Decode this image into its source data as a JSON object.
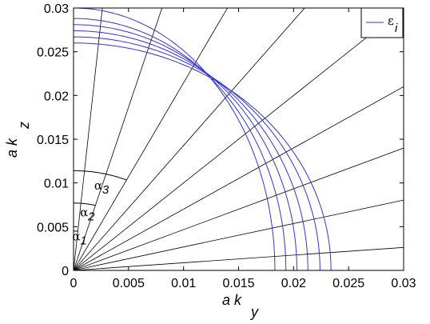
{
  "chart_data": {
    "type": "line",
    "xlabel": {
      "main": "a k",
      "sub": "y"
    },
    "ylabel": {
      "main": "a k",
      "sub": "z"
    },
    "xlim": [
      0,
      0.03
    ],
    "ylim": [
      0,
      0.03
    ],
    "xticks": [
      0,
      0.005,
      0.01,
      0.015,
      0.02,
      0.025,
      0.03
    ],
    "xtick_labels": [
      "0",
      "0.005",
      "0.01",
      "0.015",
      "0.02",
      "0.025",
      "0.03"
    ],
    "yticks": [
      0,
      0.005,
      0.01,
      0.015,
      0.02,
      0.025,
      0.03
    ],
    "ytick_labels": [
      "0",
      "0.005",
      "0.01",
      "0.015",
      "0.02",
      "0.025",
      "0.03"
    ],
    "legend": {
      "symbol": "ε",
      "sub": "i",
      "placement": "top-right"
    },
    "series_color": "#3333dd",
    "ray_color": "#000000",
    "curves": [
      {
        "ky_axis": 0.0183,
        "kz_axis": 0.03
      },
      {
        "ky_axis": 0.0193,
        "kz_axis": 0.0288
      },
      {
        "ky_axis": 0.0203,
        "kz_axis": 0.0281
      },
      {
        "ky_axis": 0.0213,
        "kz_axis": 0.0274
      },
      {
        "ky_axis": 0.0224,
        "kz_axis": 0.0267
      },
      {
        "ky_axis": 0.0234,
        "kz_axis": 0.026
      }
    ],
    "ray_angles_from_kz_deg": [
      5,
      15,
      25,
      35,
      45,
      55,
      65,
      75,
      85
    ],
    "angle_markers": [
      {
        "symbol": "α",
        "sub": "1",
        "radius": 0.0045,
        "from_deg": 0,
        "to_deg": 5
      },
      {
        "symbol": "α",
        "sub": "2",
        "radius": 0.0077,
        "from_deg": 0,
        "to_deg": 15
      },
      {
        "symbol": "α",
        "sub": "3",
        "radius": 0.0114,
        "from_deg": 0,
        "to_deg": 25
      }
    ]
  }
}
